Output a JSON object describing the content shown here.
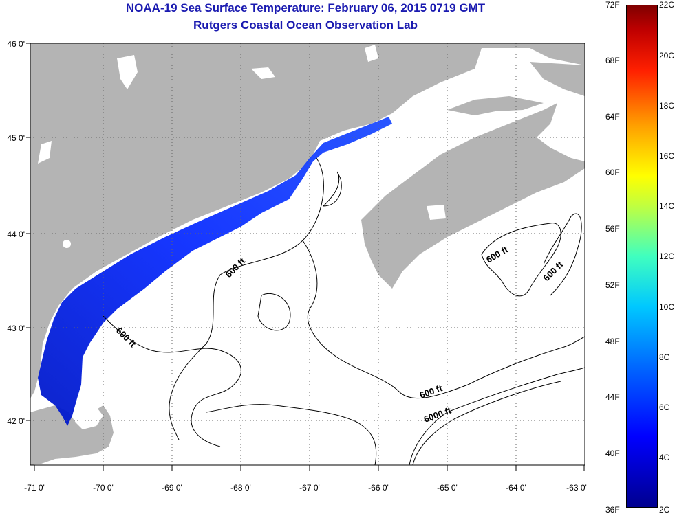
{
  "title": "NOAA-19 Sea Surface Temperature:  February 06, 2015 0719 GMT",
  "subtitle": "Rutgers Coastal Ocean Observation Lab",
  "map": {
    "lon_labels": [
      "-71 0'",
      "-70 0'",
      "-69 0'",
      "-68 0'",
      "-67 0'",
      "-66 0'",
      "-65 0'",
      "-64 0'",
      "-63 0'"
    ],
    "lat_labels": [
      "46 0'",
      "45 0'",
      "44 0'",
      "43 0'",
      "42 0'"
    ],
    "contour_labels": [
      "600 ft",
      "600 ft",
      "600 ft",
      "600 ft",
      "600 ft",
      "6000 ft"
    ],
    "colors": {
      "land": "#b4b4b4",
      "ocean": "#ffffff",
      "sst_cold": "#0000ff",
      "title": "#1a1ab0"
    }
  },
  "colorbar": {
    "f_labels": [
      "72F",
      "68F",
      "64F",
      "60F",
      "56F",
      "52F",
      "48F",
      "44F",
      "40F",
      "36F"
    ],
    "c_labels": [
      "22C",
      "20C",
      "18C",
      "16C",
      "14C",
      "12C",
      "10C",
      "8C",
      "6C",
      "4C",
      "2C"
    ]
  }
}
